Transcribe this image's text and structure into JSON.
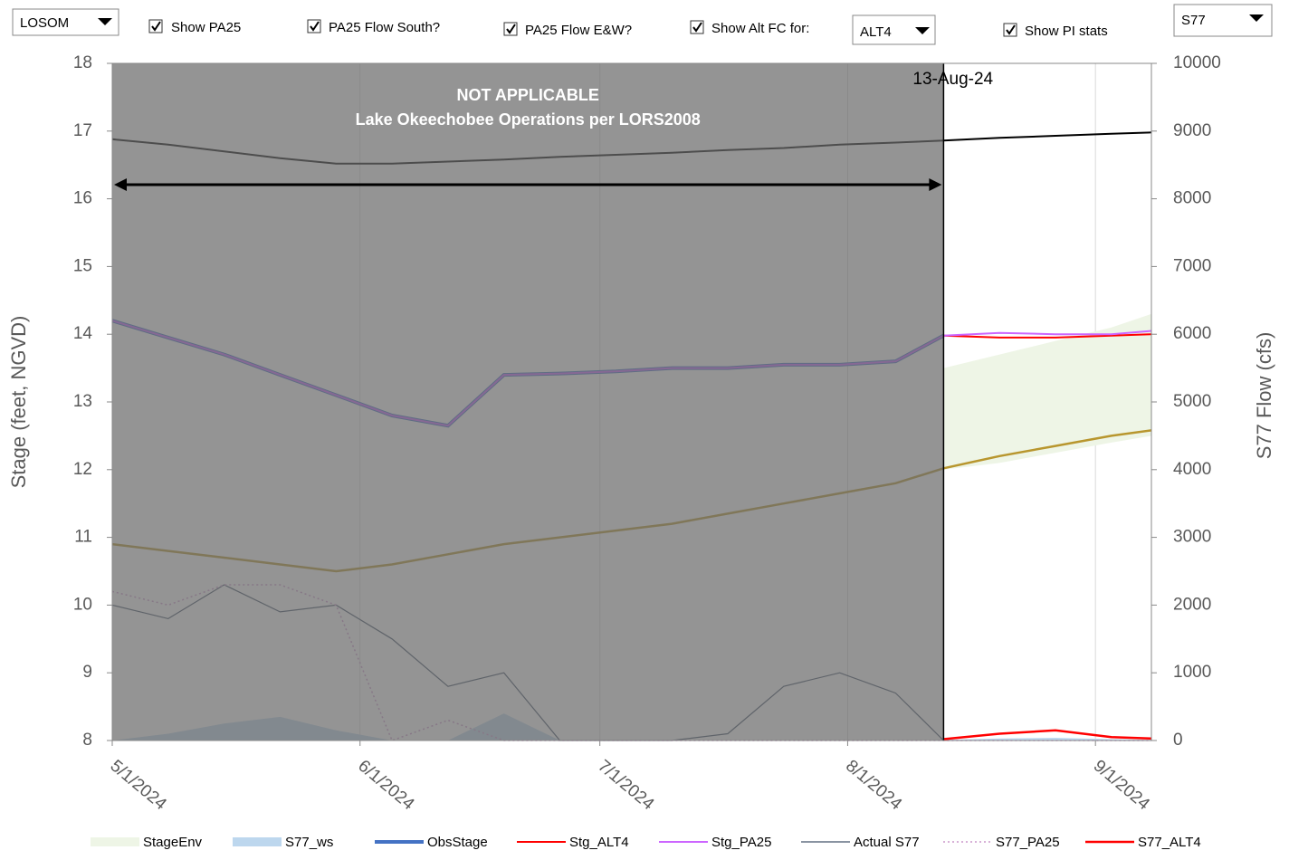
{
  "controls": {
    "model_dropdown": "LOSOM",
    "checkboxes": [
      "Show PA25",
      "PA25 Flow South?",
      "PA25 Flow E&W?",
      "Show Alt FC for:",
      "Show PI stats"
    ],
    "alt_dropdown": "ALT4",
    "structure_dropdown": "S77"
  },
  "chart_data": {
    "type": "line",
    "annotations": [
      "NOT APPLICABLE",
      "Lake Okeechobee Operations per LORS2008"
    ],
    "today": {
      "value": "2024-08-13",
      "label": "13-Aug-24"
    },
    "ylabel": "Stage (feet, NGVD)",
    "y2label": "S77 Flow (cfs)",
    "x": [
      "2024-05-01",
      "2024-05-08",
      "2024-05-15",
      "2024-05-22",
      "2024-05-29",
      "2024-06-05",
      "2024-06-12",
      "2024-06-19",
      "2024-06-26",
      "2024-07-03",
      "2024-07-10",
      "2024-07-17",
      "2024-07-24",
      "2024-07-31",
      "2024-08-07",
      "2024-08-13",
      "2024-08-20",
      "2024-08-27",
      "2024-09-03",
      "2024-09-08"
    ],
    "xlim": [
      "2024-05-01",
      "2024-09-08"
    ],
    "xticks": [
      {
        "value": "2024-05-01",
        "label": "5/1/2024"
      },
      {
        "value": "2024-06-01",
        "label": "6/1/2024"
      },
      {
        "value": "2024-07-01",
        "label": "7/1/2024"
      },
      {
        "value": "2024-08-01",
        "label": "8/1/2024"
      },
      {
        "value": "2024-09-01",
        "label": "9/1/2024"
      }
    ],
    "ylim": [
      8,
      18
    ],
    "yticks": [
      8,
      9,
      10,
      11,
      12,
      13,
      14,
      15,
      16,
      17,
      18
    ],
    "y2lim": [
      0,
      10000
    ],
    "y2ticks": [
      0,
      1000,
      2000,
      3000,
      4000,
      5000,
      6000,
      7000,
      8000,
      9000,
      10000
    ],
    "series": [
      {
        "name": "StageEnv",
        "kind": "band",
        "color": "#eef5e6",
        "values": [
          null,
          null,
          null,
          null,
          null,
          null,
          null,
          null,
          null,
          null,
          null,
          null,
          null,
          null,
          null,
          13.5,
          13.7,
          13.9,
          14.1,
          14.3
        ],
        "lower": [
          null,
          null,
          null,
          null,
          null,
          null,
          null,
          null,
          null,
          null,
          null,
          null,
          null,
          null,
          null,
          12.0,
          12.1,
          12.25,
          12.4,
          12.5
        ]
      },
      {
        "name": "S77_ws",
        "kind": "area",
        "axis": "y2",
        "color": "#bdd7ee",
        "values": [
          0,
          100,
          250,
          350,
          150,
          0,
          0,
          400,
          0,
          0,
          0,
          0,
          0,
          0,
          0,
          10,
          30,
          40,
          20,
          10
        ]
      },
      {
        "name": "ObsStage",
        "color": "#4472c4",
        "width": 4,
        "values": [
          14.2,
          13.95,
          13.7,
          13.4,
          13.1,
          12.8,
          12.65,
          13.4,
          13.42,
          13.45,
          13.5,
          13.5,
          13.55,
          13.55,
          13.6,
          13.98,
          null,
          null,
          null,
          null
        ]
      },
      {
        "name": "Stg_ALT4",
        "color": "#ff0000",
        "width": 2,
        "values": [
          null,
          null,
          null,
          null,
          null,
          null,
          null,
          null,
          null,
          null,
          null,
          null,
          null,
          null,
          null,
          13.98,
          13.95,
          13.95,
          13.98,
          14.0
        ]
      },
      {
        "name": "Stg_PA25",
        "color": "#cc66ff",
        "width": 2,
        "values": [
          14.2,
          13.95,
          13.7,
          13.4,
          13.1,
          12.8,
          12.65,
          13.4,
          13.42,
          13.45,
          13.5,
          13.5,
          13.55,
          13.55,
          13.6,
          13.98,
          14.02,
          14.0,
          14.0,
          14.05
        ]
      },
      {
        "name": "Actual S77",
        "axis": "y2",
        "color": "#44546a",
        "width": 1.2,
        "values": [
          2000,
          1800,
          2300,
          1900,
          2000,
          1500,
          800,
          1000,
          0,
          0,
          0,
          100,
          800,
          1000,
          700,
          0,
          null,
          null,
          null,
          null
        ]
      },
      {
        "name": "S77_PA25",
        "axis": "y2",
        "color": "#cc99cc",
        "width": 1.5,
        "dash": "2 3",
        "values": [
          2200,
          2000,
          2300,
          2300,
          2000,
          0,
          300,
          0,
          0,
          0,
          0,
          0,
          0,
          0,
          0,
          0,
          0,
          0,
          0,
          0
        ]
      },
      {
        "name": "S77_ALT4",
        "axis": "y2",
        "color": "#ff0000",
        "width": 2.5,
        "values": [
          null,
          null,
          null,
          null,
          null,
          null,
          null,
          null,
          null,
          null,
          null,
          null,
          null,
          null,
          null,
          20,
          100,
          150,
          50,
          30
        ]
      },
      {
        "color": "#000000",
        "width": 2,
        "values": [
          16.88,
          16.8,
          16.7,
          16.6,
          16.52,
          16.52,
          16.55,
          16.58,
          16.62,
          16.65,
          16.68,
          16.72,
          16.75,
          16.8,
          16.83,
          16.86,
          16.9,
          16.93,
          16.96,
          16.98
        ]
      },
      {
        "color": "#b8962e",
        "width": 2.5,
        "values": [
          10.9,
          10.8,
          10.7,
          10.6,
          10.5,
          10.6,
          10.75,
          10.9,
          11.0,
          11.1,
          11.2,
          11.35,
          11.5,
          11.65,
          11.8,
          12.02,
          12.2,
          12.35,
          12.5,
          12.58
        ]
      }
    ]
  }
}
